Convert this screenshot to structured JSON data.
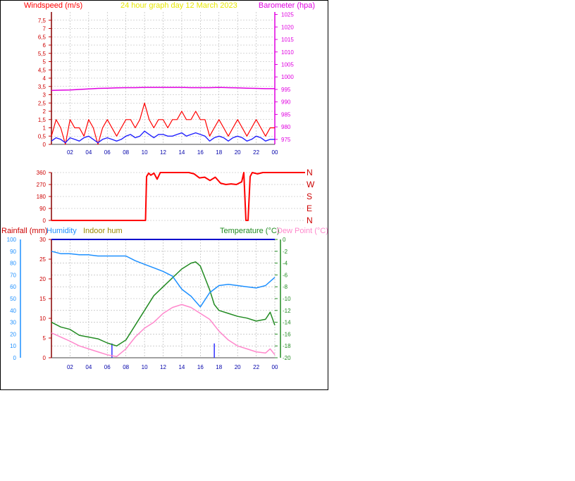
{
  "title": "24 hour graph day  12 March 2023",
  "colors": {
    "wind": "#ff0000",
    "gust": "#ff0000",
    "windavg": "#2020ff",
    "barometer": "#e000e0",
    "direction": "#ff0000",
    "humidity": "#1e90ff",
    "temperature": "#228b22",
    "dewpoint": "#ff88cc",
    "rain": "#0000cc",
    "title": "#e8e800",
    "grid": "#b0b0b0",
    "xlabels": "#0000aa"
  },
  "panels": {
    "wind": {
      "left_label": "Windspeed (m/s)",
      "right_label": "Barometer (hpa)"
    },
    "direction": {
      "cardinals": [
        "N",
        "W",
        "S",
        "E",
        "N"
      ]
    },
    "climate": {
      "rain_label": "Rainfall (mm)",
      "humidity_label": "Humidity",
      "indoor_label": "Indoor hum",
      "temp_label": "Temperature (°C)",
      "dew_label": "Dew Point (°C)"
    }
  },
  "chart_data": [
    {
      "type": "line",
      "title": "24 hour graph day  12 March 2023",
      "ylabel": "Windspeed (m/s)",
      "y2label": "Barometer (hpa)",
      "ylim": [
        0,
        8
      ],
      "y_ticks": [
        "0",
        "0,5",
        "1",
        "1,5",
        "2",
        "2,5",
        "3",
        "3,5",
        "4",
        "4,5",
        "5",
        "5,5",
        "6",
        "6,5",
        "7",
        "7,5"
      ],
      "y2lim": [
        973,
        1026
      ],
      "y2_ticks": [
        "975",
        "980",
        "985",
        "990",
        "995",
        "1000",
        "1005",
        "1010",
        "1015",
        "1020",
        "1025"
      ],
      "xlim": [
        0,
        24
      ],
      "x_ticks": [
        "02",
        "04",
        "06",
        "08",
        "10",
        "12",
        "14",
        "16",
        "18",
        "20",
        "22",
        "00"
      ],
      "series": [
        {
          "axis": "left",
          "x": [
            0,
            0.5,
            1,
            1.5,
            2,
            2.5,
            3,
            3.5,
            4,
            4.5,
            5,
            5.5,
            6,
            6.5,
            7,
            7.5,
            8,
            8.5,
            9,
            9.5,
            10,
            10.5,
            11,
            11.5,
            12,
            12.5,
            13,
            13.5,
            14,
            14.5,
            15,
            15.5,
            16,
            16.5,
            17,
            17.5,
            18,
            18.5,
            19,
            19.5,
            20,
            20.5,
            21,
            21.5,
            22,
            22.5,
            23,
            23.5,
            24
          ],
          "values": [
            0.5,
            1.5,
            1,
            0,
            1.5,
            1,
            1,
            0.5,
            1.5,
            1,
            0,
            1,
            1.5,
            1,
            0.5,
            1,
            1.5,
            1.5,
            1,
            1.5,
            2.5,
            1.5,
            1,
            1.5,
            1.5,
            1,
            1.5,
            1.5,
            2,
            1.5,
            1.5,
            2,
            1.5,
            1.5,
            0.5,
            1,
            1.5,
            1,
            0.5,
            1,
            1.5,
            1,
            0.5,
            1,
            1.5,
            1,
            0.5,
            1,
            1
          ]
        },
        {
          "axis": "left",
          "x": [
            0,
            0.5,
            1,
            1.5,
            2,
            2.5,
            3,
            3.5,
            4,
            4.5,
            5,
            5.5,
            6,
            6.5,
            7,
            7.5,
            8,
            8.5,
            9,
            9.5,
            10,
            10.5,
            11,
            11.5,
            12,
            12.5,
            13,
            13.5,
            14,
            14.5,
            15,
            15.5,
            16,
            16.5,
            17,
            17.5,
            18,
            18.5,
            19,
            19.5,
            20,
            20.5,
            21,
            21.5,
            22,
            22.5,
            23,
            23.5,
            24
          ],
          "values": [
            0.2,
            0.4,
            0.3,
            0.1,
            0.4,
            0.3,
            0.2,
            0.4,
            0.5,
            0.3,
            0.1,
            0.3,
            0.4,
            0.3,
            0.2,
            0.3,
            0.5,
            0.6,
            0.4,
            0.5,
            0.8,
            0.6,
            0.4,
            0.6,
            0.6,
            0.5,
            0.5,
            0.6,
            0.7,
            0.5,
            0.6,
            0.7,
            0.6,
            0.5,
            0.2,
            0.4,
            0.5,
            0.4,
            0.2,
            0.4,
            0.5,
            0.4,
            0.2,
            0.3,
            0.5,
            0.4,
            0.2,
            0.3,
            0.3
          ]
        },
        {
          "axis": "right",
          "x": [
            0,
            1,
            2,
            3,
            4,
            5,
            6,
            7,
            8,
            9,
            10,
            11,
            12,
            13,
            14,
            15,
            16,
            17,
            18,
            19,
            20,
            21,
            22,
            23,
            24
          ],
          "values": [
            994.6,
            994.7,
            994.8,
            995.0,
            995.2,
            995.4,
            995.5,
            995.6,
            995.7,
            995.7,
            995.8,
            995.8,
            995.8,
            995.8,
            995.8,
            995.7,
            995.7,
            995.7,
            995.8,
            995.7,
            995.6,
            995.5,
            995.4,
            995.3,
            995.3
          ]
        }
      ]
    },
    {
      "type": "line",
      "ylim": [
        0,
        360
      ],
      "y_ticks": [
        "0",
        "90",
        "180",
        "270",
        "360"
      ],
      "xlim": [
        0,
        24
      ],
      "series": [
        {
          "x": [
            0,
            2,
            4,
            6,
            8,
            8.9,
            9,
            9.2,
            9.4,
            9.7,
            10,
            10.3,
            11,
            12,
            13,
            13.5,
            14,
            14.5,
            15,
            15.5,
            16,
            16.5,
            17,
            17.5,
            18,
            18.2,
            18.4,
            18.6,
            18.8,
            19,
            19.5,
            20,
            22,
            24
          ],
          "values": [
            0,
            0,
            0,
            0,
            0,
            0,
            330,
            355,
            340,
            355,
            310,
            360,
            360,
            360,
            360,
            350,
            320,
            325,
            300,
            325,
            280,
            270,
            275,
            270,
            290,
            360,
            0,
            0,
            330,
            360,
            350,
            360,
            360,
            360
          ]
        }
      ]
    },
    {
      "type": "line",
      "ylabel": "Rainfall (mm)",
      "ylim": [
        0,
        30
      ],
      "y_ticks": [
        "0",
        "5",
        "10",
        "15",
        "20",
        "25",
        "30"
      ],
      "humidity_ticks": [
        "0",
        "10",
        "20",
        "30",
        "40",
        "50",
        "60",
        "70",
        "80",
        "90",
        "100"
      ],
      "y2label": "Temperature (°C)",
      "y2lim": [
        -20,
        0
      ],
      "y2_ticks": [
        "0",
        "-2",
        "-4",
        "-6",
        "-8",
        "-10",
        "-12",
        "-14",
        "-16",
        "-18",
        "-20"
      ],
      "xlim": [
        0,
        24
      ],
      "x_ticks": [
        "02",
        "04",
        "06",
        "08",
        "10",
        "12",
        "14",
        "16",
        "18",
        "20",
        "22",
        "00"
      ],
      "series": [
        {
          "name": "Humidity",
          "axis": "humidity",
          "x": [
            0,
            1,
            2,
            3,
            4,
            5,
            6,
            7,
            8,
            9,
            10,
            11,
            12,
            13,
            14,
            15,
            16,
            17,
            18,
            19,
            20,
            21,
            22,
            23,
            24
          ],
          "values": [
            90,
            88,
            88,
            87,
            87,
            86,
            86,
            86,
            86,
            82,
            79,
            76,
            73,
            69,
            58,
            52,
            43,
            55,
            61,
            62,
            61,
            60,
            59,
            61,
            68
          ]
        },
        {
          "name": "Temperature (°C)",
          "axis": "right",
          "x": [
            0,
            1,
            2,
            3,
            4,
            5,
            6,
            7,
            8,
            9,
            10,
            11,
            12,
            13,
            14,
            15,
            15.5,
            16,
            16.5,
            17,
            17.5,
            18,
            19,
            20,
            21,
            22,
            23,
            23.5,
            24
          ],
          "values": [
            -14,
            -14.8,
            -15.2,
            -16.2,
            -16.5,
            -16.8,
            -17.5,
            -18,
            -17,
            -14.5,
            -12,
            -9.5,
            -8,
            -6.5,
            -5,
            -4,
            -3.8,
            -4.5,
            -6.5,
            -8.5,
            -11,
            -12,
            -12.5,
            -13,
            -13.3,
            -13.8,
            -13.5,
            -12.3,
            -14.5
          ]
        },
        {
          "name": "Dew Point (°C)",
          "axis": "right",
          "x": [
            0,
            1,
            2,
            3,
            4,
            5,
            6,
            7,
            8,
            9,
            10,
            11,
            12,
            13,
            14,
            15,
            16,
            17,
            18,
            19,
            20,
            21,
            22,
            23,
            23.5,
            24
          ],
          "values": [
            -15.8,
            -16.5,
            -17.2,
            -18,
            -18.5,
            -19,
            -19.5,
            -19.8,
            -18.5,
            -16.5,
            -15,
            -14,
            -12.5,
            -11.5,
            -11,
            -11.5,
            -12.5,
            -13.5,
            -15.5,
            -17,
            -18,
            -18.5,
            -19,
            -19.2,
            -18.5,
            -19.5
          ]
        },
        {
          "axis": "left",
          "x": [
            6.5,
            17.5
          ],
          "values": [
            2.2,
            2.2
          ]
        }
      ]
    }
  ]
}
